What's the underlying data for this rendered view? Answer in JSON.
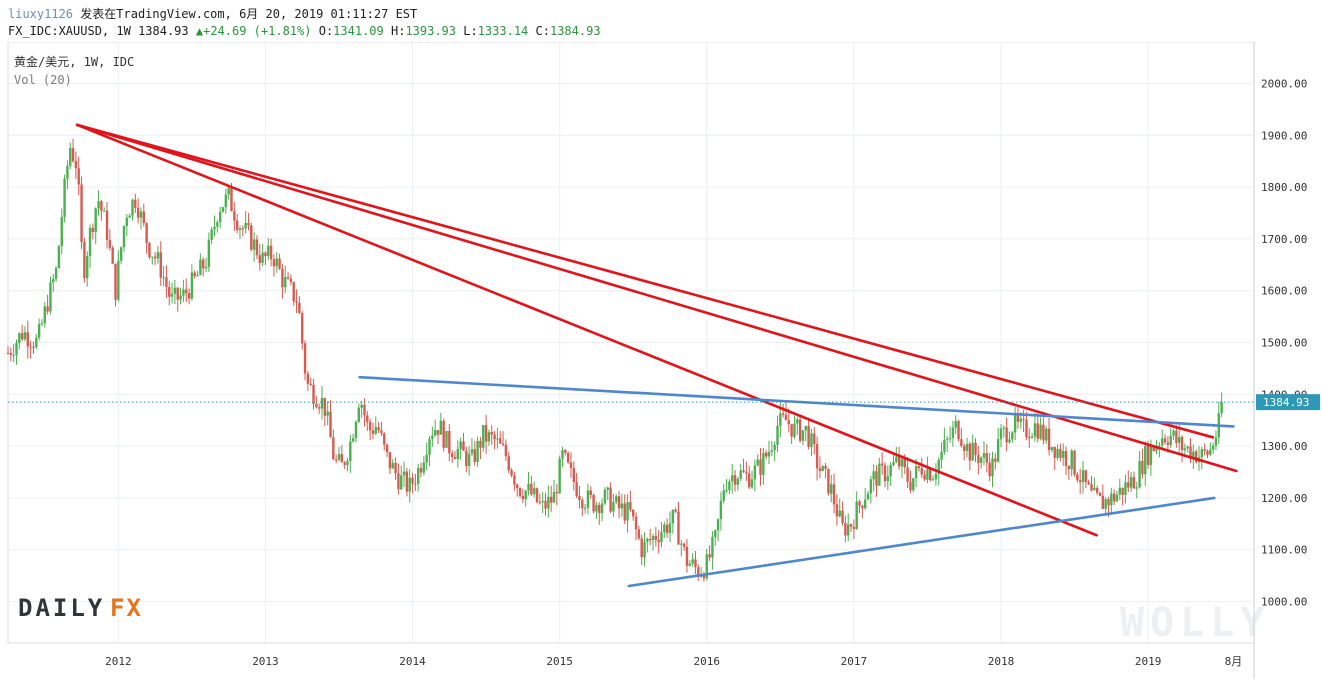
{
  "header": {
    "author": "liuxy1126",
    "publish_text": "发表在TradingView.com, 6月 20, 2019 01:11:27 EST",
    "symbol": "FX_IDC:XAUUSD, 1W",
    "last": "1384.93",
    "change": "+24.69 (+1.81%)",
    "o_label": "O:",
    "o_val": "1341.09",
    "h_label": "H:",
    "h_val": "1393.93",
    "l_label": "L:",
    "l_val": "1333.14",
    "c_label": "C:",
    "c_val": "1384.93"
  },
  "legend": {
    "line1": "黄金/美元, 1W, IDC",
    "line2": "Vol (20)"
  },
  "logo": {
    "text_left": "DAILY",
    "text_right": "FX",
    "watermark_text": "WOLLY"
  },
  "colors": {
    "up": "#4caf50",
    "down": "#d65a50",
    "trend_red": "#e0141a",
    "trend_blue": "#4f86d0",
    "price_tag": "#2e98b8",
    "grid": "#eceff2"
  },
  "chart_data": {
    "type": "candlestick",
    "symbol": "XAUUSD",
    "interval": "1W",
    "ylim": [
      920,
      2080
    ],
    "x_range": [
      2011.25,
      2019.72
    ],
    "y_ticks": [
      "1000.00",
      "1100.00",
      "1200.00",
      "1300.00",
      "1400.00",
      "1500.00",
      "1600.00",
      "1700.00",
      "1800.00",
      "1900.00",
      "2000.00"
    ],
    "y_tick_values": [
      1000,
      1100,
      1200,
      1300,
      1400,
      1500,
      1600,
      1700,
      1800,
      1900,
      2000
    ],
    "x_ticks": [
      "2012",
      "2013",
      "2014",
      "2015",
      "2016",
      "2017",
      "2018",
      "2019",
      "8月"
    ],
    "x_tick_values": [
      2012.0,
      2013.0,
      2014.0,
      2015.0,
      2016.0,
      2017.0,
      2018.0,
      2019.0,
      2019.58
    ],
    "last_price": 1384.93,
    "last_price_label": "1384.93",
    "price_path": [
      [
        2011.25,
        1480
      ],
      [
        2011.35,
        1520
      ],
      [
        2011.45,
        1500
      ],
      [
        2011.52,
        1580
      ],
      [
        2011.58,
        1640
      ],
      [
        2011.62,
        1760
      ],
      [
        2011.67,
        1880
      ],
      [
        2011.72,
        1840
      ],
      [
        2011.76,
        1630
      ],
      [
        2011.8,
        1700
      ],
      [
        2011.86,
        1780
      ],
      [
        2011.92,
        1720
      ],
      [
        2011.98,
        1600
      ],
      [
        2012.05,
        1750
      ],
      [
        2012.12,
        1780
      ],
      [
        2012.2,
        1690
      ],
      [
        2012.28,
        1650
      ],
      [
        2012.36,
        1580
      ],
      [
        2012.44,
        1590
      ],
      [
        2012.52,
        1620
      ],
      [
        2012.6,
        1660
      ],
      [
        2012.68,
        1760
      ],
      [
        2012.75,
        1780
      ],
      [
        2012.82,
        1730
      ],
      [
        2012.9,
        1700
      ],
      [
        2012.98,
        1660
      ],
      [
        2013.05,
        1670
      ],
      [
        2013.12,
        1620
      ],
      [
        2013.22,
        1580
      ],
      [
        2013.28,
        1420
      ],
      [
        2013.34,
        1400
      ],
      [
        2013.4,
        1380
      ],
      [
        2013.47,
        1270
      ],
      [
        2013.52,
        1260
      ],
      [
        2013.58,
        1310
      ],
      [
        2013.64,
        1400
      ],
      [
        2013.7,
        1330
      ],
      [
        2013.76,
        1340
      ],
      [
        2013.82,
        1280
      ],
      [
        2013.9,
        1240
      ],
      [
        2013.98,
        1220
      ],
      [
        2014.05,
        1260
      ],
      [
        2014.12,
        1330
      ],
      [
        2014.18,
        1340
      ],
      [
        2014.24,
        1300
      ],
      [
        2014.32,
        1290
      ],
      [
        2014.4,
        1270
      ],
      [
        2014.48,
        1320
      ],
      [
        2014.56,
        1310
      ],
      [
        2014.64,
        1280
      ],
      [
        2014.72,
        1220
      ],
      [
        2014.8,
        1210
      ],
      [
        2014.88,
        1180
      ],
      [
        2014.96,
        1200
      ],
      [
        2015.02,
        1280
      ],
      [
        2015.08,
        1240
      ],
      [
        2015.16,
        1200
      ],
      [
        2015.24,
        1190
      ],
      [
        2015.32,
        1200
      ],
      [
        2015.4,
        1180
      ],
      [
        2015.48,
        1170
      ],
      [
        2015.56,
        1100
      ],
      [
        2015.62,
        1120
      ],
      [
        2015.7,
        1140
      ],
      [
        2015.78,
        1160
      ],
      [
        2015.86,
        1080
      ],
      [
        2015.94,
        1060
      ],
      [
        2016.0,
        1070
      ],
      [
        2016.06,
        1120
      ],
      [
        2016.12,
        1230
      ],
      [
        2016.2,
        1250
      ],
      [
        2016.28,
        1240
      ],
      [
        2016.36,
        1260
      ],
      [
        2016.42,
        1290
      ],
      [
        2016.48,
        1340
      ],
      [
        2016.54,
        1350
      ],
      [
        2016.6,
        1330
      ],
      [
        2016.68,
        1330
      ],
      [
        2016.76,
        1260
      ],
      [
        2016.84,
        1220
      ],
      [
        2016.92,
        1140
      ],
      [
        2016.98,
        1150
      ],
      [
        2017.06,
        1200
      ],
      [
        2017.14,
        1240
      ],
      [
        2017.22,
        1250
      ],
      [
        2017.3,
        1270
      ],
      [
        2017.38,
        1230
      ],
      [
        2017.46,
        1260
      ],
      [
        2017.54,
        1250
      ],
      [
        2017.62,
        1300
      ],
      [
        2017.7,
        1340
      ],
      [
        2017.78,
        1290
      ],
      [
        2017.86,
        1280
      ],
      [
        2017.94,
        1260
      ],
      [
        2018.0,
        1320
      ],
      [
        2018.08,
        1340
      ],
      [
        2018.16,
        1330
      ],
      [
        2018.24,
        1340
      ],
      [
        2018.32,
        1310
      ],
      [
        2018.4,
        1290
      ],
      [
        2018.48,
        1270
      ],
      [
        2018.56,
        1230
      ],
      [
        2018.62,
        1200
      ],
      [
        2018.68,
        1190
      ],
      [
        2018.76,
        1200
      ],
      [
        2018.84,
        1220
      ],
      [
        2018.92,
        1240
      ],
      [
        2018.98,
        1280
      ],
      [
        2019.04,
        1300
      ],
      [
        2019.1,
        1320
      ],
      [
        2019.16,
        1320
      ],
      [
        2019.22,
        1300
      ],
      [
        2019.3,
        1290
      ],
      [
        2019.36,
        1280
      ],
      [
        2019.42,
        1290
      ],
      [
        2019.46,
        1320
      ],
      [
        2019.49,
        1350
      ],
      [
        2019.51,
        1385
      ]
    ],
    "trendlines": [
      {
        "color": "red",
        "from": [
          2011.72,
          1920
        ],
        "to": [
          2019.44,
          1317
        ]
      },
      {
        "color": "red",
        "from": [
          2011.72,
          1920
        ],
        "to": [
          2019.6,
          1252
        ]
      },
      {
        "color": "red",
        "from": [
          2011.72,
          1920
        ],
        "to": [
          2018.65,
          1128
        ]
      },
      {
        "color": "blue",
        "from": [
          2013.64,
          1433
        ],
        "to": [
          2019.58,
          1338
        ]
      },
      {
        "color": "blue",
        "from": [
          2015.47,
          1030
        ],
        "to": [
          2019.45,
          1200
        ]
      }
    ]
  }
}
